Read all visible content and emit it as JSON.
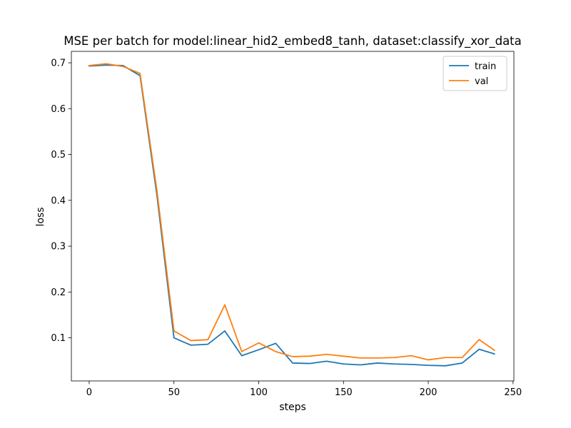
{
  "chart_data": {
    "type": "line",
    "title": "MSE per batch for model:linear_hid2_embed8_tanh, dataset:classify_xor_data",
    "xlabel": "steps",
    "ylabel": "loss",
    "xlim": [
      -10.5,
      250.5
    ],
    "ylim": [
      0.006,
      0.725
    ],
    "xticks": [
      0,
      50,
      100,
      150,
      200,
      250
    ],
    "yticks": [
      0.1,
      0.2,
      0.3,
      0.4,
      0.5,
      0.6,
      0.7
    ],
    "xtick_labels": [
      "0",
      "50",
      "100",
      "150",
      "200",
      "250"
    ],
    "ytick_labels": [
      "0.1",
      "0.2",
      "0.3",
      "0.4",
      "0.5",
      "0.6",
      "0.7"
    ],
    "grid": false,
    "legend_position": "top-right",
    "x": [
      0,
      10,
      20,
      30,
      40,
      50,
      60,
      70,
      80,
      90,
      100,
      110,
      120,
      130,
      140,
      150,
      160,
      170,
      180,
      190,
      200,
      210,
      220,
      230,
      239
    ],
    "series": [
      {
        "name": "train",
        "color": "#1f77b4",
        "values": [
          0.693,
          0.695,
          0.694,
          0.672,
          0.41,
          0.1,
          0.084,
          0.086,
          0.115,
          0.061,
          0.074,
          0.088,
          0.045,
          0.044,
          0.049,
          0.043,
          0.041,
          0.045,
          0.043,
          0.042,
          0.04,
          0.039,
          0.045,
          0.075,
          0.065
        ]
      },
      {
        "name": "val",
        "color": "#ff7f0e",
        "values": [
          0.694,
          0.698,
          0.692,
          0.677,
          0.42,
          0.115,
          0.094,
          0.096,
          0.172,
          0.07,
          0.089,
          0.07,
          0.059,
          0.06,
          0.064,
          0.06,
          0.056,
          0.056,
          0.057,
          0.061,
          0.052,
          0.057,
          0.057,
          0.096,
          0.073
        ]
      }
    ]
  }
}
